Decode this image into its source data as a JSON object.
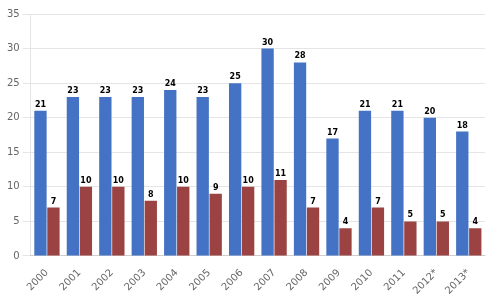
{
  "chart_data": {
    "type": "bar",
    "categories": [
      "2000",
      "2001",
      "2002",
      "2003",
      "2004",
      "2005",
      "2006",
      "2007",
      "2008",
      "2009",
      "2010",
      "2011",
      "2012*",
      "2013*"
    ],
    "series": [
      {
        "color": "#4472C4",
        "values": [
          21,
          23,
          23,
          23,
          24,
          23,
          25,
          30,
          28,
          17,
          21,
          21,
          20,
          18
        ]
      },
      {
        "color": "#9B4343",
        "values": [
          7,
          10,
          10,
          8,
          10,
          9,
          10,
          11,
          7,
          4,
          7,
          5,
          5,
          4
        ]
      }
    ],
    "ylim": [
      0,
      35
    ],
    "yticks": [
      0,
      5,
      10,
      15,
      20,
      25,
      30,
      35
    ],
    "grid": true,
    "data_labels": true
  }
}
